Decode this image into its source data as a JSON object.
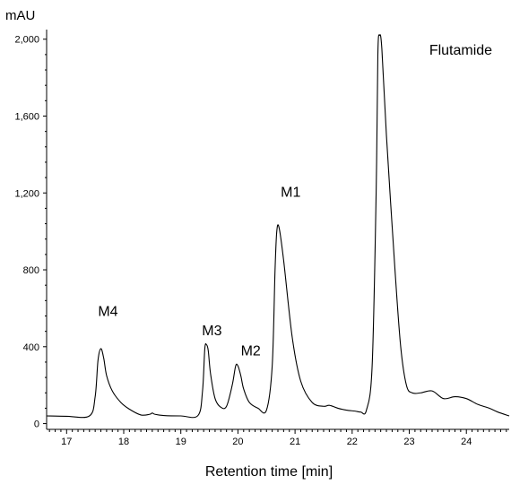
{
  "chart_data": {
    "type": "line",
    "ylabel": "mAU",
    "xlabel": "Retention time [min]",
    "xlim": [
      16.65,
      24.75
    ],
    "ylim": [
      -30,
      2050
    ],
    "grid": false,
    "legend": "none",
    "x_ticks": [
      "17",
      "18",
      "19",
      "20",
      "21",
      "22",
      "23",
      "24"
    ],
    "y_ticks": [
      "0",
      "400",
      "800",
      "1,200",
      "1,600",
      "2,000"
    ],
    "x_tick_values": [
      17,
      18,
      19,
      20,
      21,
      22,
      23,
      24
    ],
    "y_tick_values": [
      0,
      400,
      800,
      1200,
      1600,
      2000
    ],
    "series": [
      {
        "color": "#000000",
        "x": [
          16.65,
          17.0,
          17.4,
          17.5,
          17.55,
          17.6,
          17.65,
          17.7,
          17.8,
          17.95,
          18.1,
          18.3,
          18.45,
          18.5,
          18.55,
          18.7,
          19.0,
          19.3,
          19.38,
          19.42,
          19.45,
          19.48,
          19.52,
          19.6,
          19.7,
          19.8,
          19.9,
          19.96,
          20.0,
          20.05,
          20.1,
          20.2,
          20.35,
          20.5,
          20.6,
          20.65,
          20.68,
          20.72,
          20.8,
          20.95,
          21.1,
          21.3,
          21.5,
          21.6,
          21.75,
          21.9,
          22.05,
          22.15,
          22.25,
          22.35,
          22.42,
          22.45,
          22.48,
          22.52,
          22.6,
          22.75,
          22.85,
          22.95,
          23.05,
          23.2,
          23.4,
          23.6,
          23.8,
          24.0,
          24.2,
          24.4,
          24.55,
          24.75
        ],
        "y": [
          40,
          38,
          40,
          140,
          330,
          390,
          340,
          250,
          170,
          110,
          75,
          45,
          48,
          55,
          48,
          42,
          40,
          42,
          170,
          390,
          410,
          380,
          260,
          130,
          85,
          90,
          200,
          300,
          300,
          250,
          180,
          110,
          80,
          70,
          300,
          800,
          1000,
          1020,
          850,
          450,
          220,
          110,
          90,
          95,
          80,
          70,
          65,
          60,
          70,
          300,
          1200,
          1920,
          2020,
          1950,
          1500,
          800,
          400,
          200,
          160,
          160,
          170,
          130,
          140,
          130,
          100,
          80,
          60,
          40
        ]
      }
    ],
    "annotations": [
      {
        "text": "M4",
        "x": 17.55,
        "y": 560
      },
      {
        "text": "M3",
        "x": 19.37,
        "y": 460
      },
      {
        "text": "M2",
        "x": 20.05,
        "y": 355
      },
      {
        "text": "M1",
        "x": 20.75,
        "y": 1180
      },
      {
        "text": "Flutamide",
        "x": 23.35,
        "y": 1920
      }
    ]
  }
}
